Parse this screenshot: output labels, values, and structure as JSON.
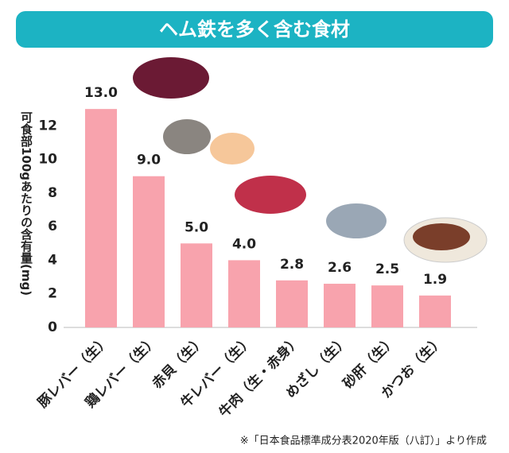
{
  "chart_data": {
    "type": "bar",
    "title": "ヘム鉄を多く含む食材",
    "y_label": "可食部100gあたりの含有量(mg)",
    "categories": [
      "豚レバー（生）",
      "鶏レバー（生）",
      "赤貝（生）",
      "牛レバー（生）",
      "牛肉（生・赤身）",
      "めざし（生）",
      "砂肝（生）",
      "かつお（生）"
    ],
    "values": [
      13.0,
      9.0,
      5.0,
      4.0,
      2.8,
      2.6,
      2.5,
      1.9
    ],
    "value_labels": [
      "13.0",
      "9.0",
      "5.0",
      "4.0",
      "2.8",
      "2.6",
      "2.5",
      "1.9"
    ],
    "color": "#f8a3ad",
    "ylim": [
      0,
      14
    ],
    "yticks": [
      0,
      2,
      4,
      6,
      8,
      10,
      12
    ],
    "source": "※「日本食品標準成分表2020年版（八訂）」より作成"
  }
}
